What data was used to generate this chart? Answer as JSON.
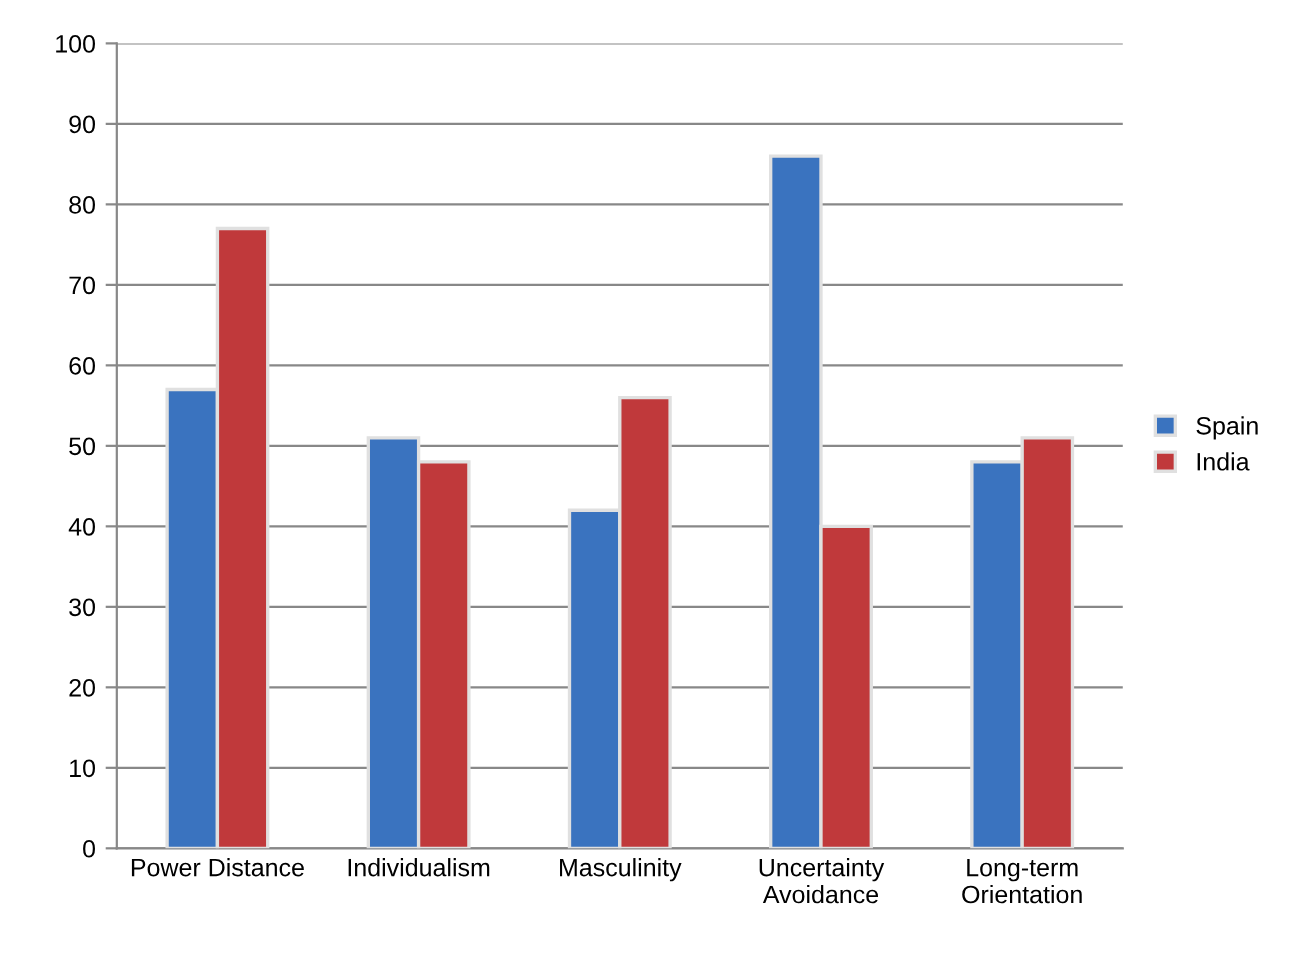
{
  "chart_data": {
    "type": "bar",
    "categories": [
      "Power Distance",
      "Individualism",
      "Masculinity",
      "Uncertainty\nAvoidance",
      "Long-term\nOrientation"
    ],
    "series": [
      {
        "name": "Spain",
        "color": "#3a73bf",
        "values": [
          57,
          51,
          42,
          86,
          48
        ]
      },
      {
        "name": "India",
        "color": "#c0393b",
        "values": [
          77,
          48,
          56,
          40,
          51
        ]
      }
    ],
    "ylim": [
      0,
      100
    ],
    "yticks": [
      0,
      10,
      20,
      30,
      40,
      50,
      60,
      70,
      80,
      90,
      100
    ],
    "grid": "y",
    "legend": "right"
  }
}
